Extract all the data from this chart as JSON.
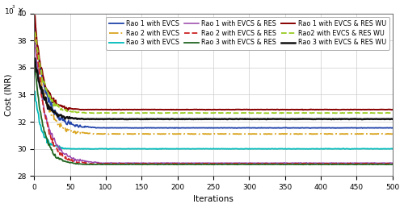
{
  "title": "",
  "xlabel": "Iterations",
  "ylabel": "Cost (INR)",
  "xlim": [
    0,
    500
  ],
  "ylim": [
    28,
    40
  ],
  "yticks": [
    28,
    30,
    32,
    34,
    36,
    38,
    40
  ],
  "xticks": [
    0,
    50,
    100,
    150,
    200,
    250,
    300,
    350,
    400,
    450,
    500
  ],
  "series": [
    {
      "label": "Rao 1 with EVCS",
      "color": "#2244aa",
      "linestyle": "-",
      "linewidth": 1.3,
      "start": 38.8,
      "converge_iter": 85,
      "converge_val": 31.55,
      "noise_scale": 0.18
    },
    {
      "label": "Rao 2 with EVCS",
      "color": "#daa520",
      "linestyle": "-.",
      "linewidth": 1.3,
      "start": 38.3,
      "converge_iter": 80,
      "converge_val": 31.1,
      "noise_scale": 0.2
    },
    {
      "label": "Rao 3 with EVCS",
      "color": "#00bbbb",
      "linestyle": "-",
      "linewidth": 1.3,
      "start": 34.1,
      "converge_iter": 50,
      "converge_val": 30.0,
      "noise_scale": 0.15
    },
    {
      "label": "Rao 1 with EVCS & RES",
      "color": "#9944aa",
      "linestyle": "-",
      "linewidth": 1.1,
      "start": 37.8,
      "converge_iter": 90,
      "converge_val": 28.95,
      "noise_scale": 0.15
    },
    {
      "label": "Rao 2 with EVCS & RES",
      "color": "#cc2222",
      "linestyle": "--",
      "linewidth": 1.3,
      "start": 39.3,
      "converge_iter": 75,
      "converge_val": 28.9,
      "noise_scale": 0.18
    },
    {
      "label": "Rao 3 with EVCS & RES",
      "color": "#226622",
      "linestyle": "-",
      "linewidth": 1.3,
      "start": 36.2,
      "converge_iter": 65,
      "converge_val": 28.85,
      "noise_scale": 0.12
    },
    {
      "label": "Rao 1 with EVCS & RES WU",
      "color": "#880000",
      "linestyle": "-",
      "linewidth": 1.4,
      "start": 39.5,
      "converge_iter": 62,
      "converge_val": 32.9,
      "noise_scale": 0.2
    },
    {
      "label": "Rao2 with EVCS & RES WU",
      "color": "#99cc22",
      "linestyle": "--",
      "linewidth": 1.3,
      "start": 38.6,
      "converge_iter": 70,
      "converge_val": 32.65,
      "noise_scale": 0.18
    },
    {
      "label": "Rao 3 with EVCS & RES WU",
      "color": "#111111",
      "linestyle": "-",
      "linewidth": 1.8,
      "start": 36.6,
      "converge_iter": 68,
      "converge_val": 32.2,
      "noise_scale": 0.16
    }
  ],
  "background_color": "#ffffff",
  "grid_color": "#cccccc",
  "legend_fontsize": 5.8,
  "axis_fontsize": 7.5,
  "tick_fontsize": 6.5
}
